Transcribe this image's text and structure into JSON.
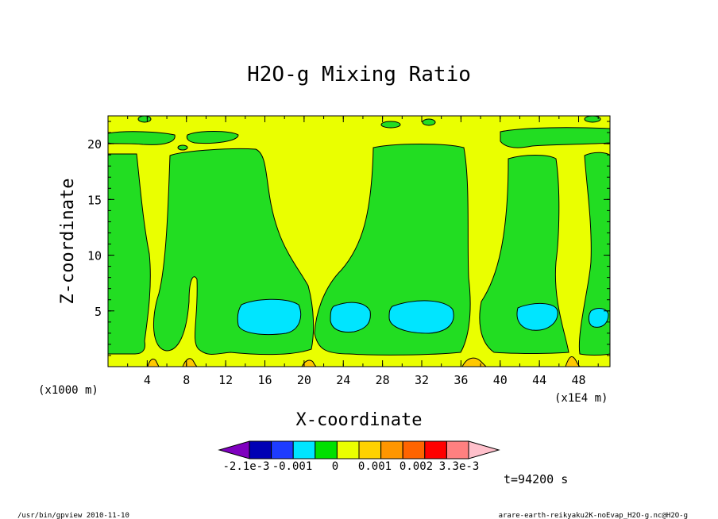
{
  "chart_data": {
    "type": "contour",
    "title": "H2O-g Mixing Ratio",
    "xlabel": "X-coordinate",
    "ylabel": "Z-coordinate",
    "x_unit_left": "(x1000 m)",
    "x_unit_right": "(x1E4 m)",
    "x_ticks": [
      "4",
      "8",
      "12",
      "16",
      "20",
      "24",
      "28",
      "32",
      "36",
      "40",
      "44",
      "48"
    ],
    "y_ticks": [
      "5",
      "10",
      "15",
      "20"
    ],
    "xlim": [
      0,
      512
    ],
    "ylim": [
      0,
      22.5
    ],
    "colorbar": {
      "labels": [
        "-2.1e-3",
        "-0.001",
        "0",
        "0.001",
        "0.002",
        "3.3e-3"
      ],
      "colors": [
        "#7f00bf",
        "#0000b4",
        "#1e3cff",
        "#00e5ff",
        "#00e000",
        "#eaff00",
        "#ffd200",
        "#ff9600",
        "#ff6400",
        "#ff0000",
        "#ff8080",
        "#ffc0cb"
      ]
    },
    "regions": [
      {
        "level": "yellow",
        "color": "#eaff00",
        "description": "background"
      },
      {
        "level": "green",
        "color": "#22dd22"
      },
      {
        "level": "cyan",
        "color": "#00e5ff"
      },
      {
        "level": "orange",
        "color": "#ffc800"
      }
    ],
    "time_label": "t=94200 s"
  },
  "footer": {
    "left": "/usr/bin/gpview   2010-11-10",
    "right": "arare-earth-reikyaku2K-noEvap_H2O-g.nc@H2O-g"
  }
}
